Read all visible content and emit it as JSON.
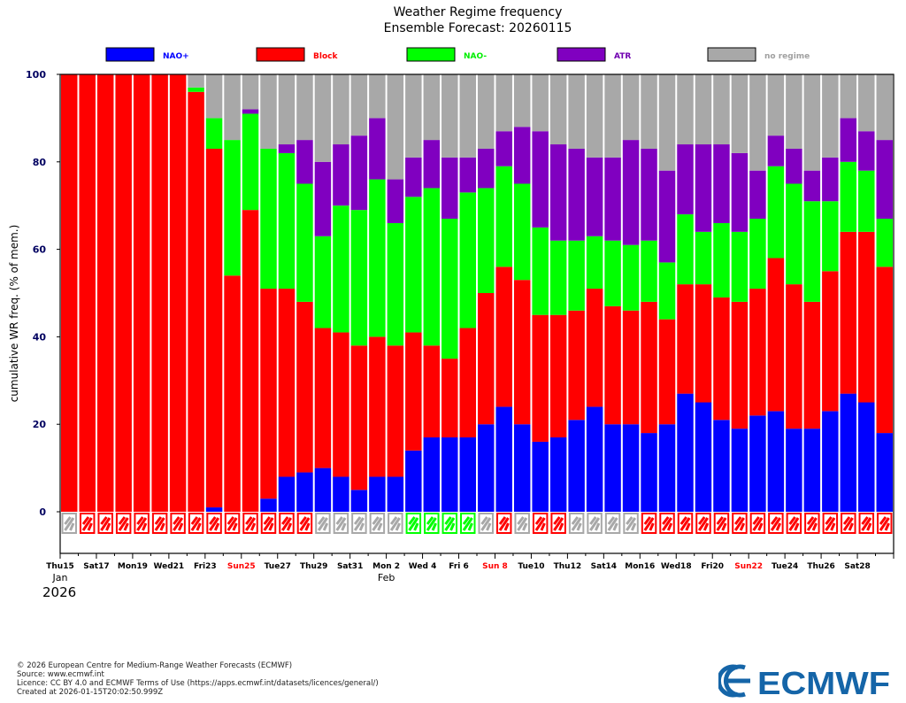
{
  "chart_data": {
    "type": "bar",
    "stacked": true,
    "title": "Weather Regime frequency",
    "subtitle": "Ensemble Forecast: 20260115",
    "ylabel": "cumulative WR freq. (% of mem.)",
    "ylim": [
      -10,
      100
    ],
    "yticks": [
      0,
      20,
      40,
      60,
      80,
      100
    ],
    "legend": [
      {
        "name": "NAO+",
        "color": "#0000ff"
      },
      {
        "name": "Block",
        "color": "#ff0000"
      },
      {
        "name": "NAO-",
        "color": "#00ff00"
      },
      {
        "name": "ATR",
        "color": "#8000c0"
      },
      {
        "name": "no regime",
        "color": "#a8a8a8"
      }
    ],
    "legend_text_colors": [
      "#0000ff",
      "#ff0000",
      "#00ee00",
      "#7000b0",
      "#a0a0a0"
    ],
    "series_colors": {
      "nao_plus": "#0000ff",
      "block": "#ff0000",
      "nao_minus": "#00ff00",
      "atr": "#8000c0",
      "none": "#a8a8a8"
    },
    "x_tick_labels": [
      {
        "index": 0,
        "label": "Thu15",
        "weekend": false
      },
      {
        "index": 2,
        "label": "Sat17",
        "weekend": false
      },
      {
        "index": 4,
        "label": "Mon19",
        "weekend": false
      },
      {
        "index": 6,
        "label": "Wed21",
        "weekend": false
      },
      {
        "index": 8,
        "label": "Fri23",
        "weekend": false
      },
      {
        "index": 10,
        "label": "Sun25",
        "weekend": true
      },
      {
        "index": 12,
        "label": "Tue27",
        "weekend": false
      },
      {
        "index": 14,
        "label": "Thu29",
        "weekend": false
      },
      {
        "index": 16,
        "label": "Sat31",
        "weekend": false
      },
      {
        "index": 18,
        "label": "Mon 2",
        "weekend": false
      },
      {
        "index": 20,
        "label": "Wed 4",
        "weekend": false
      },
      {
        "index": 22,
        "label": "Fri 6",
        "weekend": false
      },
      {
        "index": 24,
        "label": "Sun 8",
        "weekend": true
      },
      {
        "index": 26,
        "label": "Tue10",
        "weekend": false
      },
      {
        "index": 28,
        "label": "Thu12",
        "weekend": false
      },
      {
        "index": 30,
        "label": "Sat14",
        "weekend": false
      },
      {
        "index": 32,
        "label": "Mon16",
        "weekend": false
      },
      {
        "index": 34,
        "label": "Wed18",
        "weekend": false
      },
      {
        "index": 36,
        "label": "Fri20",
        "weekend": false
      },
      {
        "index": 38,
        "label": "Sun22",
        "weekend": true
      },
      {
        "index": 40,
        "label": "Tue24",
        "weekend": false
      },
      {
        "index": 42,
        "label": "Thu26",
        "weekend": false
      },
      {
        "index": 44,
        "label": "Sat28",
        "weekend": false
      }
    ],
    "month_labels": [
      {
        "index": 0,
        "label": "Jan"
      },
      {
        "index": 18,
        "label": "Feb"
      }
    ],
    "year_label": "2026",
    "bars": [
      {
        "nao_plus": 0,
        "block": 100,
        "nao_minus": 0,
        "atr": 0,
        "dominant": "none"
      },
      {
        "nao_plus": 0,
        "block": 100,
        "nao_minus": 0,
        "atr": 0,
        "dominant": "block"
      },
      {
        "nao_plus": 0,
        "block": 100,
        "nao_minus": 0,
        "atr": 0,
        "dominant": "block"
      },
      {
        "nao_plus": 0,
        "block": 100,
        "nao_minus": 0,
        "atr": 0,
        "dominant": "block"
      },
      {
        "nao_plus": 0,
        "block": 100,
        "nao_minus": 0,
        "atr": 0,
        "dominant": "block"
      },
      {
        "nao_plus": 0,
        "block": 100,
        "nao_minus": 0,
        "atr": 0,
        "dominant": "block"
      },
      {
        "nao_plus": 0,
        "block": 100,
        "nao_minus": 0,
        "atr": 0,
        "dominant": "block"
      },
      {
        "nao_plus": 0,
        "block": 96,
        "nao_minus": 1,
        "atr": 0,
        "dominant": "block"
      },
      {
        "nao_plus": 1,
        "block": 82,
        "nao_minus": 7,
        "atr": 0,
        "dominant": "block"
      },
      {
        "nao_plus": 0,
        "block": 54,
        "nao_minus": 31,
        "atr": 0,
        "dominant": "block"
      },
      {
        "nao_plus": 0,
        "block": 69,
        "nao_minus": 22,
        "atr": 1,
        "dominant": "block"
      },
      {
        "nao_plus": 3,
        "block": 48,
        "nao_minus": 32,
        "atr": 0,
        "dominant": "block"
      },
      {
        "nao_plus": 8,
        "block": 43,
        "nao_minus": 31,
        "atr": 2,
        "dominant": "block"
      },
      {
        "nao_plus": 9,
        "block": 39,
        "nao_minus": 27,
        "atr": 10,
        "dominant": "block"
      },
      {
        "nao_plus": 10,
        "block": 32,
        "nao_minus": 21,
        "atr": 17,
        "dominant": "none"
      },
      {
        "nao_plus": 8,
        "block": 33,
        "nao_minus": 29,
        "atr": 14,
        "dominant": "none"
      },
      {
        "nao_plus": 5,
        "block": 33,
        "nao_minus": 31,
        "atr": 17,
        "dominant": "none"
      },
      {
        "nao_plus": 8,
        "block": 32,
        "nao_minus": 36,
        "atr": 14,
        "dominant": "none"
      },
      {
        "nao_plus": 8,
        "block": 30,
        "nao_minus": 28,
        "atr": 10,
        "dominant": "none"
      },
      {
        "nao_plus": 14,
        "block": 27,
        "nao_minus": 31,
        "atr": 9,
        "dominant": "nao_minus"
      },
      {
        "nao_plus": 17,
        "block": 21,
        "nao_minus": 36,
        "atr": 11,
        "dominant": "nao_minus"
      },
      {
        "nao_plus": 17,
        "block": 18,
        "nao_minus": 32,
        "atr": 14,
        "dominant": "nao_minus"
      },
      {
        "nao_plus": 17,
        "block": 25,
        "nao_minus": 31,
        "atr": 8,
        "dominant": "nao_minus"
      },
      {
        "nao_plus": 20,
        "block": 30,
        "nao_minus": 24,
        "atr": 9,
        "dominant": "none"
      },
      {
        "nao_plus": 24,
        "block": 32,
        "nao_minus": 23,
        "atr": 8,
        "dominant": "block"
      },
      {
        "nao_plus": 20,
        "block": 33,
        "nao_minus": 22,
        "atr": 13,
        "dominant": "none"
      },
      {
        "nao_plus": 16,
        "block": 29,
        "nao_minus": 20,
        "atr": 22,
        "dominant": "block"
      },
      {
        "nao_plus": 17,
        "block": 28,
        "nao_minus": 17,
        "atr": 22,
        "dominant": "block"
      },
      {
        "nao_plus": 21,
        "block": 25,
        "nao_minus": 16,
        "atr": 21,
        "dominant": "none"
      },
      {
        "nao_plus": 24,
        "block": 27,
        "nao_minus": 12,
        "atr": 18,
        "dominant": "none"
      },
      {
        "nao_plus": 20,
        "block": 27,
        "nao_minus": 15,
        "atr": 19,
        "dominant": "none"
      },
      {
        "nao_plus": 20,
        "block": 26,
        "nao_minus": 15,
        "atr": 24,
        "dominant": "none"
      },
      {
        "nao_plus": 18,
        "block": 30,
        "nao_minus": 14,
        "atr": 21,
        "dominant": "block"
      },
      {
        "nao_plus": 20,
        "block": 24,
        "nao_minus": 13,
        "atr": 21,
        "dominant": "block"
      },
      {
        "nao_plus": 27,
        "block": 25,
        "nao_minus": 16,
        "atr": 16,
        "dominant": "block"
      },
      {
        "nao_plus": 25,
        "block": 27,
        "nao_minus": 12,
        "atr": 20,
        "dominant": "block"
      },
      {
        "nao_plus": 21,
        "block": 28,
        "nao_minus": 17,
        "atr": 18,
        "dominant": "block"
      },
      {
        "nao_plus": 19,
        "block": 29,
        "nao_minus": 16,
        "atr": 18,
        "dominant": "block"
      },
      {
        "nao_plus": 22,
        "block": 29,
        "nao_minus": 16,
        "atr": 11,
        "dominant": "block"
      },
      {
        "nao_plus": 23,
        "block": 35,
        "nao_minus": 21,
        "atr": 7,
        "dominant": "block"
      },
      {
        "nao_plus": 19,
        "block": 33,
        "nao_minus": 23,
        "atr": 8,
        "dominant": "block"
      },
      {
        "nao_plus": 19,
        "block": 29,
        "nao_minus": 23,
        "atr": 7,
        "dominant": "block"
      },
      {
        "nao_plus": 23,
        "block": 32,
        "nao_minus": 16,
        "atr": 10,
        "dominant": "block"
      },
      {
        "nao_plus": 27,
        "block": 37,
        "nao_minus": 16,
        "atr": 10,
        "dominant": "block"
      },
      {
        "nao_plus": 25,
        "block": 39,
        "nao_minus": 14,
        "atr": 9,
        "dominant": "block"
      },
      {
        "nao_plus": 18,
        "block": 38,
        "nao_minus": 11,
        "atr": 18,
        "dominant": "block"
      }
    ]
  },
  "footer": {
    "copyright": "© 2026 European Centre for Medium-Range Weather Forecasts (ECMWF)",
    "source": "Source: www.ecmwf.int",
    "licence": "Licence: CC BY 4.0 and ECMWF Terms of Use (https://apps.ecmwf.int/datasets/licences/general/)",
    "created": "Created at 2026-01-15T20:02:50.999Z"
  },
  "logo": {
    "text": "ECMWF",
    "color": "#1565a8"
  }
}
